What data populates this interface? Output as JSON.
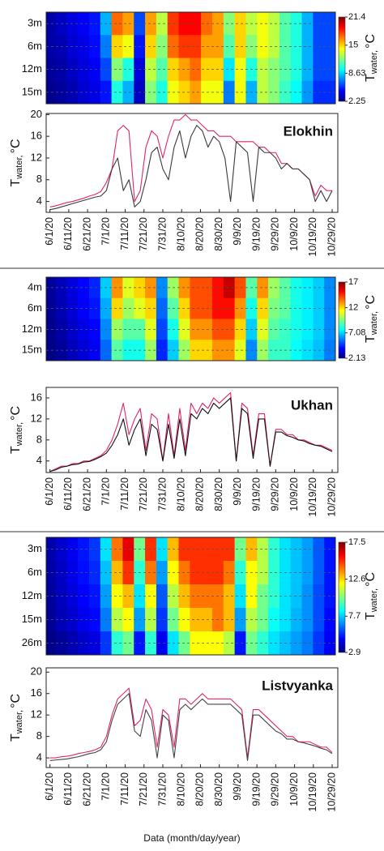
{
  "chart_data": [
    {
      "type": "heatmap",
      "rows": [
        "3m",
        "6m",
        "12m",
        "15m"
      ],
      "x": [
        "6/1/20",
        "6/7/20",
        "6/13/20",
        "6/19/20",
        "6/25/20",
        "7/1/20",
        "7/7/20",
        "7/13/20",
        "7/19/20",
        "7/25/20",
        "7/31/20",
        "8/6/20",
        "8/12/20",
        "8/18/20",
        "8/24/20",
        "8/30/20",
        "9/5/20",
        "9/11/20",
        "9/17/20",
        "9/23/20",
        "9/29/20",
        "10/5/20",
        "10/11/20",
        "10/17/20",
        "10/23/20",
        "10/29/20"
      ],
      "values": [
        [
          3,
          3.5,
          4,
          4.5,
          5,
          8,
          17,
          16,
          6,
          16,
          13,
          18,
          19,
          19,
          17,
          16,
          12,
          15,
          13,
          14,
          13,
          11,
          10,
          8,
          6,
          6
        ],
        [
          3,
          3.2,
          3.8,
          4.2,
          4.8,
          7,
          15,
          14,
          5,
          15,
          12,
          17,
          18,
          18,
          16,
          16,
          11,
          15,
          12,
          14,
          13,
          11,
          10,
          8,
          6,
          6
        ],
        [
          2.8,
          3,
          3.5,
          4,
          4.5,
          6,
          12,
          10,
          4,
          13,
          11,
          15,
          16,
          17,
          15,
          15,
          9,
          14,
          10,
          13,
          12,
          11,
          10,
          8,
          6,
          6
        ],
        [
          2.5,
          2.8,
          3.2,
          3.8,
          4.2,
          5,
          10,
          8,
          3.5,
          12,
          10,
          14,
          15,
          16,
          14,
          14,
          7,
          14,
          8,
          13,
          12,
          10.5,
          9.5,
          7.5,
          5.5,
          5.5
        ]
      ],
      "colormap": [
        "#00007f",
        "#0000ff",
        "#007fff",
        "#00ffff",
        "#7fff7f",
        "#ffff00",
        "#ff7f00",
        "#ff0000",
        "#7f0000"
      ],
      "clim": [
        2.25,
        21.4
      ],
      "colorbar_ticks": [
        21.4,
        15,
        8.63,
        2.25
      ],
      "colorbar_label": {
        "symbol": "T",
        "subscript": "water,",
        "unit": "°C"
      },
      "xlim": [
        "5/30/20",
        "11/1/20"
      ]
    },
    {
      "type": "line",
      "title": "Elokhin",
      "x": [
        "6/1/20",
        "6/4/20",
        "6/7/20",
        "6/10/20",
        "6/13/20",
        "6/16/20",
        "6/19/20",
        "6/22/20",
        "6/25/20",
        "6/28/20",
        "7/1/20",
        "7/4/20",
        "7/7/20",
        "7/10/20",
        "7/13/20",
        "7/16/20",
        "7/19/20",
        "7/22/20",
        "7/25/20",
        "7/28/20",
        "7/31/20",
        "8/3/20",
        "8/6/20",
        "8/9/20",
        "8/12/20",
        "8/15/20",
        "8/18/20",
        "8/21/20",
        "8/24/20",
        "8/27/20",
        "8/30/20",
        "9/2/20",
        "9/5/20",
        "9/8/20",
        "9/11/20",
        "9/14/20",
        "9/17/20",
        "9/20/20",
        "9/23/20",
        "9/26/20",
        "9/29/20",
        "10/2/20",
        "10/5/20",
        "10/8/20",
        "10/11/20",
        "10/14/20",
        "10/17/20",
        "10/20/20",
        "10/23/20",
        "10/26/20",
        "10/29/20"
      ],
      "series": [
        {
          "color": "#e3246e",
          "values": [
            3,
            3.2,
            3.5,
            3.8,
            4,
            4.3,
            4.6,
            5,
            5.3,
            5.8,
            7.5,
            10,
            17,
            18,
            17,
            4,
            6,
            14,
            17,
            16,
            12,
            16,
            19,
            19,
            20,
            19,
            19,
            18,
            17,
            17,
            16,
            16,
            16,
            15,
            15,
            15,
            15,
            14,
            14,
            13,
            13,
            11,
            11,
            10,
            10,
            9,
            8,
            5,
            7,
            6,
            6
          ]
        },
        {
          "color": "#3a3a3a",
          "values": [
            2.5,
            2.7,
            3,
            3.3,
            3.6,
            3.9,
            4.2,
            4.5,
            4.8,
            5,
            6,
            10,
            12,
            6,
            8,
            3,
            4,
            8,
            13,
            14,
            10,
            8,
            14,
            17,
            12,
            16,
            18,
            17,
            14,
            16,
            15,
            12,
            4,
            15,
            14,
            13,
            4,
            14,
            13,
            13,
            12,
            10,
            11,
            10,
            10,
            9,
            8,
            4,
            6,
            4,
            6
          ]
        }
      ],
      "xlim": [
        "5/30/20",
        "11/1/20"
      ],
      "xticks": [
        "6/1/20",
        "6/11/20",
        "6/21/20",
        "7/1/20",
        "7/11/20",
        "7/21/20",
        "7/31/20",
        "8/10/20",
        "8/20/20",
        "8/30/20",
        "9/9/20",
        "9/19/20",
        "9/29/20",
        "10/9/20",
        "10/19/20",
        "10/29/20"
      ],
      "ylim": [
        2,
        20.2
      ],
      "yticks": [
        4,
        8,
        12,
        16,
        20
      ],
      "y_label": {
        "symbol": "T",
        "subscript": "water,",
        "unit": "°C"
      }
    },
    {
      "type": "heatmap",
      "rows": [
        "4m",
        "6m",
        "12m",
        "15m"
      ],
      "x": [
        "6/1/20",
        "6/7/20",
        "6/13/20",
        "6/19/20",
        "6/25/20",
        "7/1/20",
        "7/7/20",
        "7/13/20",
        "7/19/20",
        "7/25/20",
        "7/31/20",
        "8/6/20",
        "8/12/20",
        "8/18/20",
        "8/24/20",
        "8/30/20",
        "9/5/20",
        "9/11/20",
        "9/17/20",
        "9/23/20",
        "9/29/20",
        "10/5/20",
        "10/11/20",
        "10/17/20",
        "10/23/20",
        "10/29/20"
      ],
      "values": [
        [
          2.5,
          3,
          3.5,
          4,
          4.5,
          7,
          13,
          11,
          12,
          13,
          6,
          10,
          13,
          14,
          14,
          15,
          16,
          14,
          9,
          13,
          10,
          9,
          8,
          7.5,
          7,
          6
        ],
        [
          2.4,
          2.9,
          3.4,
          3.9,
          4.3,
          6.5,
          12,
          10,
          11,
          12,
          5.5,
          9,
          12,
          14,
          14,
          15,
          15,
          13,
          8,
          12,
          9.5,
          9,
          8,
          7.5,
          7,
          6
        ],
        [
          2.3,
          2.7,
          3.2,
          3.6,
          4,
          6,
          10,
          9,
          9,
          11,
          5,
          8,
          11,
          13,
          13,
          14,
          14,
          12,
          7,
          11,
          9,
          8.5,
          8,
          7.5,
          7,
          6
        ],
        [
          2.2,
          2.5,
          3,
          3.4,
          3.8,
          5.5,
          9,
          8,
          8,
          10,
          4.5,
          7,
          10,
          12,
          12,
          13,
          13,
          11,
          6,
          10,
          8.5,
          8.5,
          7.8,
          7.3,
          6.8,
          5.8
        ]
      ],
      "colormap": [
        "#00007f",
        "#0000ff",
        "#007fff",
        "#00ffff",
        "#7fff7f",
        "#ffff00",
        "#ff7f00",
        "#ff0000",
        "#7f0000"
      ],
      "clim": [
        2.13,
        17
      ],
      "colorbar_ticks": [
        17,
        12,
        7.08,
        2.13
      ],
      "colorbar_label": {
        "symbol": "T",
        "subscript": "water,",
        "unit": "°C"
      },
      "xlim": [
        "5/30/20",
        "11/1/20"
      ]
    },
    {
      "type": "line",
      "title": "Ukhan",
      "x": [
        "6/1/20",
        "6/4/20",
        "6/7/20",
        "6/10/20",
        "6/13/20",
        "6/16/20",
        "6/19/20",
        "6/22/20",
        "6/25/20",
        "6/28/20",
        "7/1/20",
        "7/4/20",
        "7/7/20",
        "7/10/20",
        "7/13/20",
        "7/16/20",
        "7/19/20",
        "7/22/20",
        "7/25/20",
        "7/28/20",
        "7/31/20",
        "8/3/20",
        "8/6/20",
        "8/9/20",
        "8/12/20",
        "8/15/20",
        "8/18/20",
        "8/21/20",
        "8/24/20",
        "8/27/20",
        "8/30/20",
        "9/2/20",
        "9/5/20",
        "9/8/20",
        "9/11/20",
        "9/14/20",
        "9/17/20",
        "9/20/20",
        "9/23/20",
        "9/26/20",
        "9/29/20",
        "10/2/20",
        "10/5/20",
        "10/8/20",
        "10/11/20",
        "10/14/20",
        "10/17/20",
        "10/20/20",
        "10/23/20",
        "10/26/20",
        "10/29/20"
      ],
      "series": [
        {
          "color": "#e3246e",
          "values": [
            2,
            2.5,
            3,
            3,
            3.5,
            3.5,
            4,
            4,
            4.5,
            5,
            6,
            8,
            11,
            15,
            9,
            12,
            14,
            6,
            13,
            12,
            4,
            13,
            5,
            14,
            6,
            15,
            13,
            15,
            14,
            16,
            15,
            16,
            17,
            4,
            15,
            14,
            5,
            13,
            13,
            3,
            10,
            10,
            9,
            9,
            8,
            8,
            7.5,
            7,
            7,
            6.5,
            6
          ]
        },
        {
          "color": "#111111",
          "values": [
            2,
            2.3,
            2.8,
            3,
            3.3,
            3.4,
            3.8,
            3.9,
            4.3,
            4.8,
            5.5,
            7,
            9,
            12,
            7,
            10,
            12,
            5,
            11,
            10,
            4,
            11,
            4.5,
            12,
            5,
            13,
            12,
            14,
            13,
            15,
            14,
            15,
            16,
            4,
            14,
            13,
            4.5,
            12,
            12,
            3,
            9.5,
            9.5,
            8.8,
            8.5,
            8,
            7.8,
            7.3,
            7,
            6.8,
            6.3,
            5.8
          ]
        }
      ],
      "xlim": [
        "5/30/20",
        "11/1/20"
      ],
      "xticks": [
        "6/1/20",
        "6/11/20",
        "6/21/20",
        "7/1/20",
        "7/11/20",
        "7/21/20",
        "7/31/20",
        "8/10/20",
        "8/20/20",
        "8/30/20",
        "9/9/20",
        "9/19/20",
        "9/29/20",
        "10/9/20",
        "10/19/20",
        "10/29/20"
      ],
      "ylim": [
        1.8,
        18
      ],
      "yticks": [
        4,
        8,
        12,
        16
      ],
      "y_label": {
        "symbol": "T",
        "subscript": "water,",
        "unit": "°C"
      }
    },
    {
      "type": "heatmap",
      "rows": [
        "3m",
        "6m",
        "12m",
        "15m",
        "26m"
      ],
      "x": [
        "6/1/20",
        "6/7/20",
        "6/13/20",
        "6/19/20",
        "6/25/20",
        "7/1/20",
        "7/7/20",
        "7/13/20",
        "7/19/20",
        "7/25/20",
        "7/31/20",
        "8/6/20",
        "8/12/20",
        "8/18/20",
        "8/24/20",
        "8/30/20",
        "9/5/20",
        "9/11/20",
        "9/17/20",
        "9/23/20",
        "9/29/20",
        "10/5/20",
        "10/11/20",
        "10/17/20",
        "10/23/20",
        "10/29/20"
      ],
      "values": [
        [
          3.5,
          4,
          4.5,
          5,
          5.5,
          8,
          14,
          16,
          10,
          15,
          8,
          13,
          15,
          15,
          15,
          15,
          15,
          10,
          13,
          11,
          9,
          8,
          7.5,
          7,
          6,
          5
        ],
        [
          3.4,
          3.9,
          4.4,
          4.9,
          5.3,
          7.5,
          13,
          15,
          9,
          14,
          7,
          12,
          14,
          15,
          15,
          15,
          14,
          9,
          12,
          11,
          9,
          8,
          7.5,
          7,
          6,
          5
        ],
        [
          3.3,
          3.8,
          4.2,
          4.7,
          5,
          7,
          12,
          13,
          8,
          12,
          6,
          11,
          13,
          14,
          14,
          14,
          13,
          8,
          12,
          10,
          9,
          8,
          7.5,
          6.8,
          5.8,
          5
        ],
        [
          3.2,
          3.7,
          4,
          4.5,
          4.8,
          6.5,
          11,
          12,
          7,
          11,
          5.5,
          10,
          12,
          13,
          13,
          14,
          13,
          7,
          11,
          10,
          8.5,
          8,
          7.3,
          6.8,
          5.8,
          4.8
        ],
        [
          3,
          3.3,
          3.6,
          4,
          4.3,
          5.5,
          9,
          10,
          5,
          9,
          4.5,
          8,
          10,
          12,
          12,
          12,
          11,
          5,
          10,
          9,
          8,
          7.5,
          7,
          6.5,
          5.5,
          4.6
        ]
      ],
      "colormap": [
        "#00007f",
        "#0000ff",
        "#007fff",
        "#00ffff",
        "#7fff7f",
        "#ffff00",
        "#ff7f00",
        "#ff0000",
        "#7f0000"
      ],
      "clim": [
        2.9,
        17.5
      ],
      "colorbar_ticks": [
        17.5,
        12.6,
        7.7,
        2.9
      ],
      "colorbar_label": {
        "symbol": "T",
        "subscript": "water,",
        "unit": "°C"
      },
      "xlim": [
        "5/30/20",
        "11/1/20"
      ]
    },
    {
      "type": "line",
      "title": "Listvyanka",
      "x": [
        "6/1/20",
        "6/4/20",
        "6/7/20",
        "6/10/20",
        "6/13/20",
        "6/16/20",
        "6/19/20",
        "6/22/20",
        "6/25/20",
        "6/28/20",
        "7/1/20",
        "7/4/20",
        "7/7/20",
        "7/10/20",
        "7/13/20",
        "7/16/20",
        "7/19/20",
        "7/22/20",
        "7/25/20",
        "7/28/20",
        "7/31/20",
        "8/3/20",
        "8/6/20",
        "8/9/20",
        "8/12/20",
        "8/15/20",
        "8/18/20",
        "8/21/20",
        "8/24/20",
        "8/27/20",
        "8/30/20",
        "9/2/20",
        "9/5/20",
        "9/8/20",
        "9/11/20",
        "9/14/20",
        "9/17/20",
        "9/20/20",
        "9/23/20",
        "9/26/20",
        "9/29/20",
        "10/2/20",
        "10/5/20",
        "10/8/20",
        "10/11/20",
        "10/14/20",
        "10/17/20",
        "10/20/20",
        "10/23/20",
        "10/26/20",
        "10/29/20"
      ],
      "series": [
        {
          "color": "#e3246e",
          "values": [
            4,
            4,
            4.2,
            4.3,
            4.5,
            4.8,
            5,
            5.2,
            5.5,
            6,
            8,
            12,
            15,
            16,
            17,
            10,
            11,
            15,
            13,
            6,
            13,
            12,
            6,
            15,
            15,
            14,
            15,
            16,
            15,
            15,
            15,
            15,
            15,
            14,
            13,
            4,
            13,
            13,
            12,
            11,
            10,
            9,
            8,
            8,
            7,
            7,
            7,
            6.5,
            6,
            6,
            5
          ]
        },
        {
          "color": "#444444",
          "values": [
            3.5,
            3.6,
            3.7,
            3.8,
            4,
            4.2,
            4.5,
            4.8,
            5,
            5.5,
            7,
            11,
            14,
            15,
            16,
            9,
            8,
            13,
            11,
            4,
            12,
            11,
            4,
            13,
            14,
            13,
            14,
            15,
            14,
            14,
            14,
            14,
            14,
            13,
            12,
            3.5,
            12,
            12,
            11,
            10,
            9,
            8.5,
            7.5,
            7.5,
            7,
            6.8,
            6.5,
            6.2,
            5.8,
            5.5,
            4.8
          ]
        }
      ],
      "xlim": [
        "5/30/20",
        "11/1/20"
      ],
      "xticks": [
        "6/1/20",
        "6/11/20",
        "6/21/20",
        "7/1/20",
        "7/11/20",
        "7/21/20",
        "7/31/20",
        "8/10/20",
        "8/20/20",
        "8/30/20",
        "9/9/20",
        "9/19/20",
        "9/29/20",
        "10/9/20",
        "10/19/20",
        "10/29/20"
      ],
      "ylim": [
        2.2,
        20.8
      ],
      "yticks": [
        4,
        8,
        12,
        16,
        20
      ],
      "y_label": {
        "symbol": "T",
        "subscript": "water,",
        "unit": "°C"
      },
      "x_label": "Data (month/day/year)"
    }
  ]
}
